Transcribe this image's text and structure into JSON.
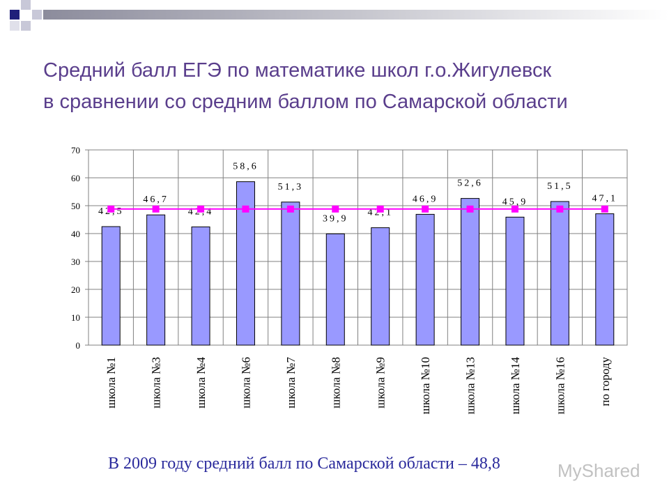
{
  "title_lines": [
    "Средний балл ЕГЭ по математике школ г.о.Жигулевск",
    "в сравнении со средним баллом по Самарской области"
  ],
  "chart_data": {
    "type": "bar",
    "categories": [
      "школа №1",
      "школа №3",
      "школа №4",
      "школа №6",
      "школа №7",
      "школа №8",
      "школа №9",
      "школа №10",
      "школа №13",
      "школа №14",
      "школа №16",
      "по городу"
    ],
    "series": [
      {
        "type": "bar",
        "color": "#9999ff",
        "values": [
          42.5,
          46.7,
          42.4,
          58.6,
          51.3,
          39.9,
          42.1,
          46.9,
          52.6,
          45.9,
          51.5,
          47.1
        ],
        "value_labels": [
          "42,5",
          "46,7",
          "42,4",
          "58,6",
          "51,3",
          "39,9",
          "42,1",
          "46,9",
          "52,6",
          "45,9",
          "51,5",
          "47,1"
        ]
      },
      {
        "type": "line",
        "color": "#ff00ff",
        "values": [
          48.8,
          48.8,
          48.8,
          48.8,
          48.8,
          48.8,
          48.8,
          48.8,
          48.8,
          48.8,
          48.8,
          48.8
        ]
      }
    ],
    "ylim": [
      0,
      70
    ],
    "yticks": [
      0,
      10,
      20,
      30,
      40,
      50,
      60,
      70
    ],
    "grid": true
  },
  "footer": "В 2009 году средний балл по Самарской области – 48,8",
  "watermark": "MyShared"
}
